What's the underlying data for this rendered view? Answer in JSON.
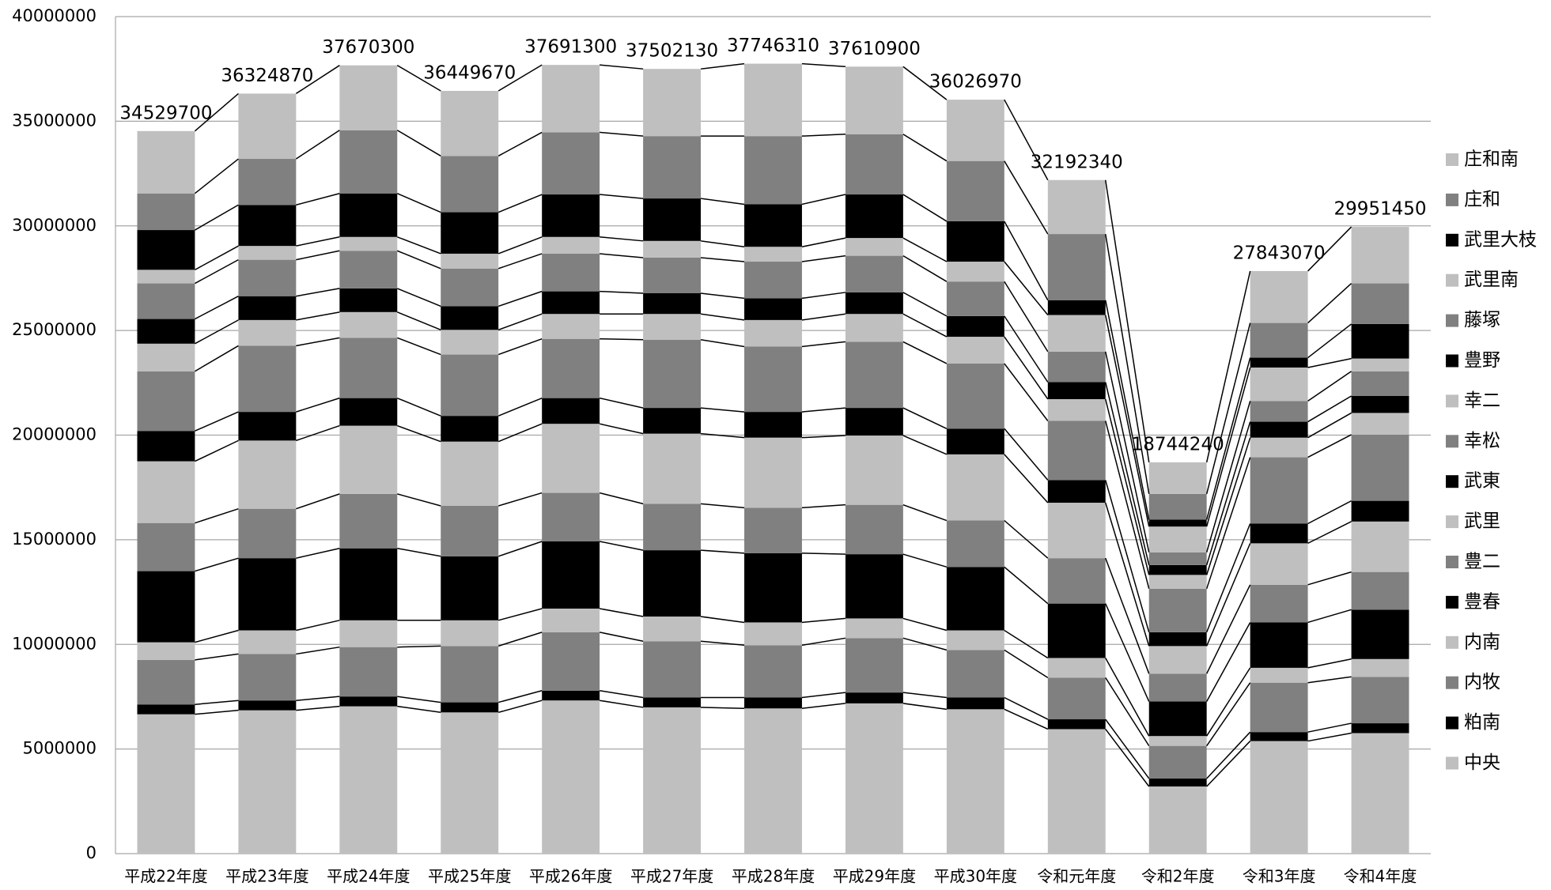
{
  "chart_data": {
    "type": "stacked_bar",
    "categories": [
      "平成22年度",
      "平成23年度",
      "平成24年度",
      "平成25年度",
      "平成26年度",
      "平成27年度",
      "平成28年度",
      "平成29年度",
      "平成30年度",
      "令和元年度",
      "令和2年度",
      "令和3年度",
      "令和4年度"
    ],
    "total_labels": [
      34529700,
      36324870,
      37670300,
      36449670,
      37691300,
      37502130,
      37746310,
      37610900,
      36026970,
      32192340,
      18744240,
      27843070,
      29951450
    ],
    "ylim": [
      0,
      40000000
    ],
    "yticks": [
      0,
      5000000,
      10000000,
      15000000,
      20000000,
      25000000,
      30000000,
      35000000,
      40000000
    ],
    "grid": true,
    "legend": "right",
    "series": [
      {
        "name": "中央",
        "color": "#bfbfbf",
        "values": [
          6660000,
          6850000,
          7040000,
          6750000,
          7320000,
          6990000,
          6940000,
          7180000,
          6900000,
          5950000,
          3210000,
          5380000,
          5760000
        ]
      },
      {
        "name": "粕南",
        "color": "#000000",
        "values": [
          470000,
          470000,
          470000,
          480000,
          470000,
          470000,
          520000,
          520000,
          560000,
          470000,
          380000,
          430000,
          470000
        ]
      },
      {
        "name": "内牧",
        "color": "#808080",
        "values": [
          2130000,
          2220000,
          2360000,
          2690000,
          2790000,
          2690000,
          2500000,
          2600000,
          2270000,
          1990000,
          1560000,
          2360000,
          2220000
        ]
      },
      {
        "name": "内南",
        "color": "#bfbfbf",
        "values": [
          840000,
          1130000,
          1280000,
          1230000,
          1130000,
          1180000,
          1090000,
          940000,
          940000,
          940000,
          470000,
          710000,
          850000
        ]
      },
      {
        "name": "豊春",
        "color": "#000000",
        "values": [
          3400000,
          3450000,
          3440000,
          3060000,
          3210000,
          3170000,
          3310000,
          3070000,
          3030000,
          2600000,
          1650000,
          2170000,
          2360000
        ]
      },
      {
        "name": "豊二",
        "color": "#808080",
        "values": [
          2300000,
          2360000,
          2600000,
          2410000,
          2320000,
          2220000,
          2170000,
          2360000,
          2220000,
          2170000,
          1330000,
          1800000,
          1800000
        ]
      },
      {
        "name": "武里",
        "color": "#bfbfbf",
        "values": [
          2950000,
          3260000,
          3260000,
          3070000,
          3300000,
          3350000,
          3350000,
          3310000,
          3160000,
          2650000,
          1320000,
          1980000,
          2410000
        ]
      },
      {
        "name": "武東",
        "color": "#000000",
        "values": [
          1450000,
          1370000,
          1320000,
          1230000,
          1230000,
          1230000,
          1230000,
          1320000,
          1230000,
          1080000,
          660000,
          940000,
          990000
        ]
      },
      {
        "name": "幸松",
        "color": "#808080",
        "values": [
          2850000,
          3160000,
          2880000,
          2930000,
          2830000,
          3260000,
          3120000,
          3160000,
          3110000,
          2830000,
          2080000,
          3170000,
          3160000
        ]
      },
      {
        "name": "幸二",
        "color": "#bfbfbf",
        "values": [
          1320000,
          1230000,
          1230000,
          1180000,
          1190000,
          1230000,
          1270000,
          1330000,
          1280000,
          1040000,
          660000,
          940000,
          1040000
        ]
      },
      {
        "name": "豊野",
        "color": "#000000",
        "values": [
          1180000,
          1140000,
          1130000,
          1130000,
          1080000,
          990000,
          1040000,
          1030000,
          990000,
          810000,
          470000,
          760000,
          810000
        ]
      },
      {
        "name": "藤塚",
        "color": "#808080",
        "values": [
          1700000,
          1740000,
          1800000,
          1800000,
          1800000,
          1700000,
          1750000,
          1750000,
          1650000,
          1460000,
          610000,
          990000,
          1180000
        ]
      },
      {
        "name": "武里南",
        "color": "#bfbfbf",
        "values": [
          650000,
          660000,
          660000,
          710000,
          800000,
          800000,
          710000,
          850000,
          950000,
          1750000,
          1230000,
          1600000,
          610000
        ]
      },
      {
        "name": "武里大枝",
        "color": "#000000",
        "values": [
          1900000,
          1960000,
          2080000,
          1980000,
          2030000,
          2030000,
          2030000,
          2080000,
          1930000,
          710000,
          330000,
          470000,
          1650000
        ]
      },
      {
        "name": "庄和",
        "color": "#808080",
        "values": [
          1750000,
          2200000,
          3020000,
          2690000,
          2970000,
          2980000,
          3260000,
          2880000,
          2880000,
          3160000,
          1230000,
          1660000,
          1940000
        ]
      },
      {
        "name": "庄和南",
        "color": "#bfbfbf",
        "values": [
          2980000,
          3120000,
          3100000,
          3110000,
          3220000,
          3210000,
          3460000,
          3230000,
          2930000,
          2580000,
          1510000,
          2480000,
          2700000
        ]
      }
    ]
  }
}
